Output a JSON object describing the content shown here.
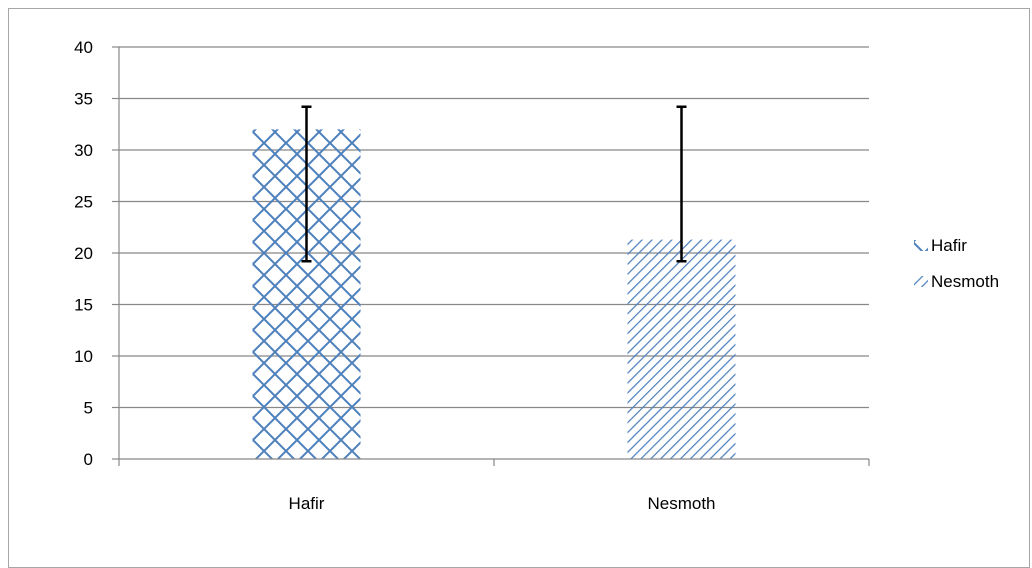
{
  "chart_data": {
    "type": "bar",
    "categories": [
      "Hafir",
      "Nesmoth"
    ],
    "series": [
      {
        "name": "Hafir",
        "values": [
          32,
          null
        ],
        "error": [
          [
            19.2,
            34.2
          ],
          null
        ],
        "pattern": "crosshatch"
      },
      {
        "name": "Nesmoth",
        "values": [
          null,
          21.3
        ],
        "error": [
          null,
          [
            19.2,
            34.2
          ]
        ],
        "pattern": "diagonal"
      }
    ],
    "ylim": [
      0,
      40
    ],
    "yticks": [
      "0",
      "5",
      "10",
      "15",
      "20",
      "25",
      "30",
      "35",
      "40"
    ],
    "grid": true,
    "legend": "right",
    "colors": {
      "bar": "#4f81bd",
      "grid": "#888888",
      "errorbar": "#000000"
    }
  }
}
